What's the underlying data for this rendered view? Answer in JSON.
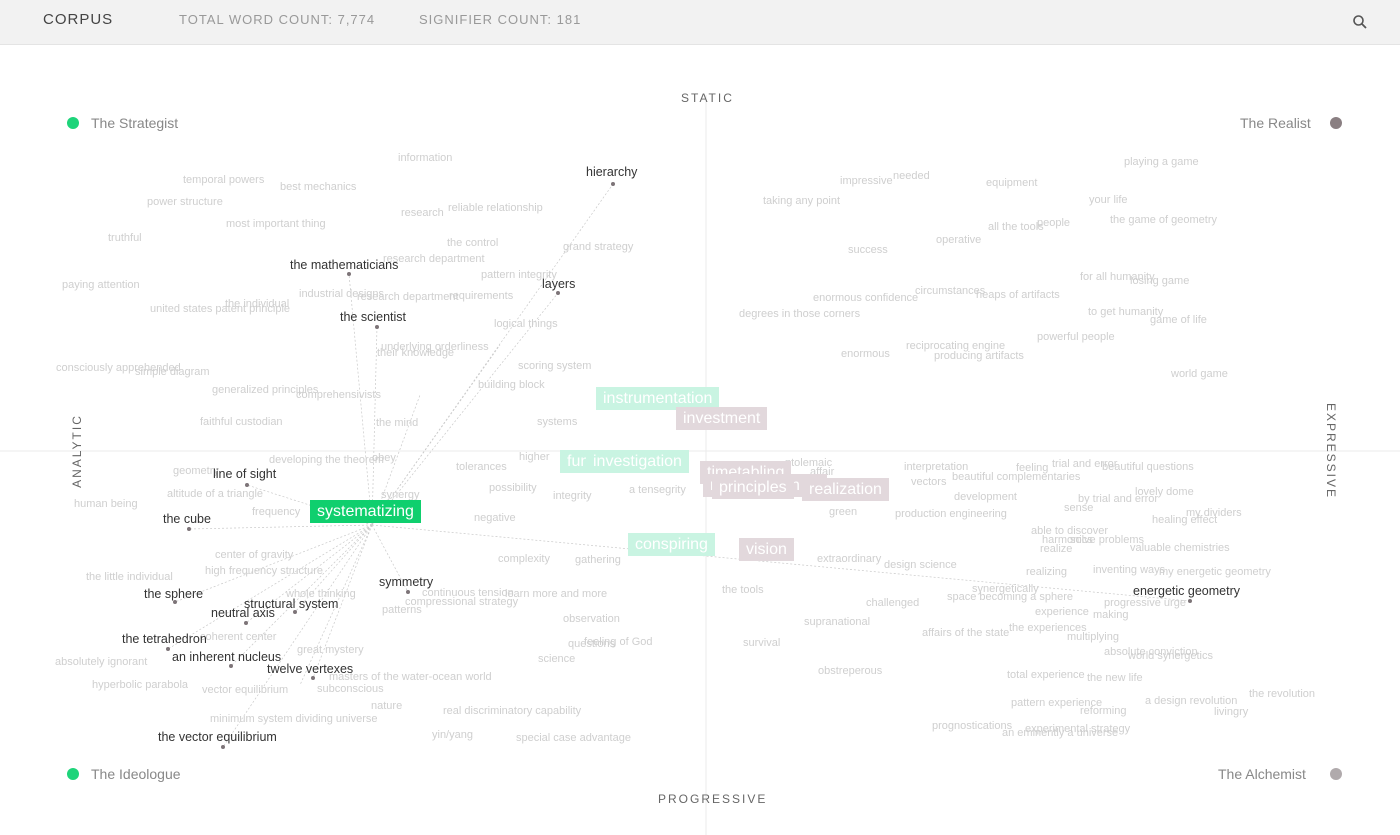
{
  "header": {
    "brand": "CORPUS",
    "word_count": "TOTAL WORD COUNT: 7,774",
    "signifier_count": "SIGNIFIER COUNT: 181",
    "search_icon": "search-icon"
  },
  "axes": {
    "top": "STATIC",
    "bottom": "PROGRESSIVE",
    "left": "ANALYTIC",
    "right": "EXPRESSIVE"
  },
  "quadrants": {
    "strategist": "The Strategist",
    "realist": "The Realist",
    "ideologue": "The Ideologue",
    "alchemist": "The Alchemist"
  },
  "colors": {
    "accent_green": "#1ed47a",
    "active_tag": "#0fcf6e",
    "mint_tag": "#c9f4e2",
    "mauve_tag": "#e2d8dc",
    "dot_gray": "#8a7f82"
  },
  "selected": "systematizing",
  "connected_words": [
    "hierarchy",
    "layers",
    "the mathematicians",
    "the scientist",
    "line of sight",
    "the cube",
    "the sphere",
    "the tetrahedron",
    "an inherent nucleus",
    "neutral axis",
    "structural system",
    "twelve vertexes",
    "symmetry",
    "the vector equilibrium",
    "energetic geometry"
  ],
  "faint_words": [
    "information",
    "temporal powers",
    "best mechanics",
    "power structure",
    "research",
    "reliable relationship",
    "most important thing",
    "truthful",
    "the control",
    "grand strategy",
    "research department",
    "pattern integrity",
    "paying attention",
    "industrial designs",
    "research department",
    "requirements",
    "the individual",
    "united states patent principle",
    "logical things",
    "underlying orderliness",
    "their knowledge",
    "consciously apprehended",
    "simple diagram",
    "scoring system",
    "building block",
    "generalized principles",
    "comprehensivists",
    "faithful custodian",
    "the mind",
    "systems",
    "developing the theorem",
    "obey",
    "tolerances",
    "higher",
    "geometry",
    "altitude of a triangle",
    "synergy",
    "human being",
    "frequency",
    "possibility",
    "integrity",
    "a tensegrity",
    "negative",
    "center of gravity",
    "high frequency structure",
    "the little individual",
    "whole thinking",
    "continuous tension",
    "learn more and more",
    "compressional strategy",
    "patterns",
    "coherent center",
    "great mystery",
    "observation",
    "questions",
    "feeling of God",
    "absolutely ignorant",
    "science",
    "hyperbolic parabola",
    "vector equilibrium",
    "masters of the water-ocean world",
    "subconscious",
    "nature",
    "minimum system dividing universe",
    "real discriminatory capability",
    "yin/yang",
    "special case advantage",
    "complexity",
    "gathering",
    "playing a game",
    "impressive",
    "needed",
    "equipment",
    "taking any point",
    "your life",
    "the game of geometry",
    "all the tools",
    "people",
    "operative",
    "success",
    "for all humanity",
    "losing game",
    "circumstances",
    "heaps of artifacts",
    "enormous confidence",
    "to get humanity",
    "game of life",
    "degrees in those corners",
    "powerful people",
    "reciprocating engine",
    "producing artifacts",
    "enormous",
    "world game",
    "interpretation",
    "feeling",
    "trial and error",
    "beautiful questions",
    "beautiful complementaries",
    "vectors",
    "development",
    "lovely dome",
    "by trial and error",
    "green",
    "production engineering",
    "sense",
    "healing effect",
    "my dividers",
    "able to discover",
    "harmonics",
    "solve problems",
    "realize",
    "valuable chemistries",
    "extraordinary",
    "design science",
    "inventing ways",
    "my energetic geometry",
    "realizing",
    "the tools",
    "synergetically",
    "space becoming a sphere",
    "progressive urge",
    "challenged",
    "experience",
    "making",
    "supranational",
    "affairs of the state",
    "the experiences",
    "multiplying",
    "absolute conviction",
    "survival",
    "world synergetics",
    "obstreperous",
    "total experience",
    "the new life",
    "pattern experience",
    "reforming",
    "a design revolution",
    "livingry",
    "the revolution",
    "prognostications",
    "experimental strategy",
    "an eminently a universe",
    "affair",
    "ptolemaic"
  ],
  "tags": [
    "systematizing",
    "instrumentation",
    "investment",
    "investigation",
    "fundamentals",
    "timetabling",
    "principles",
    "realization",
    "conspiring",
    "vision",
    "regeneration"
  ]
}
